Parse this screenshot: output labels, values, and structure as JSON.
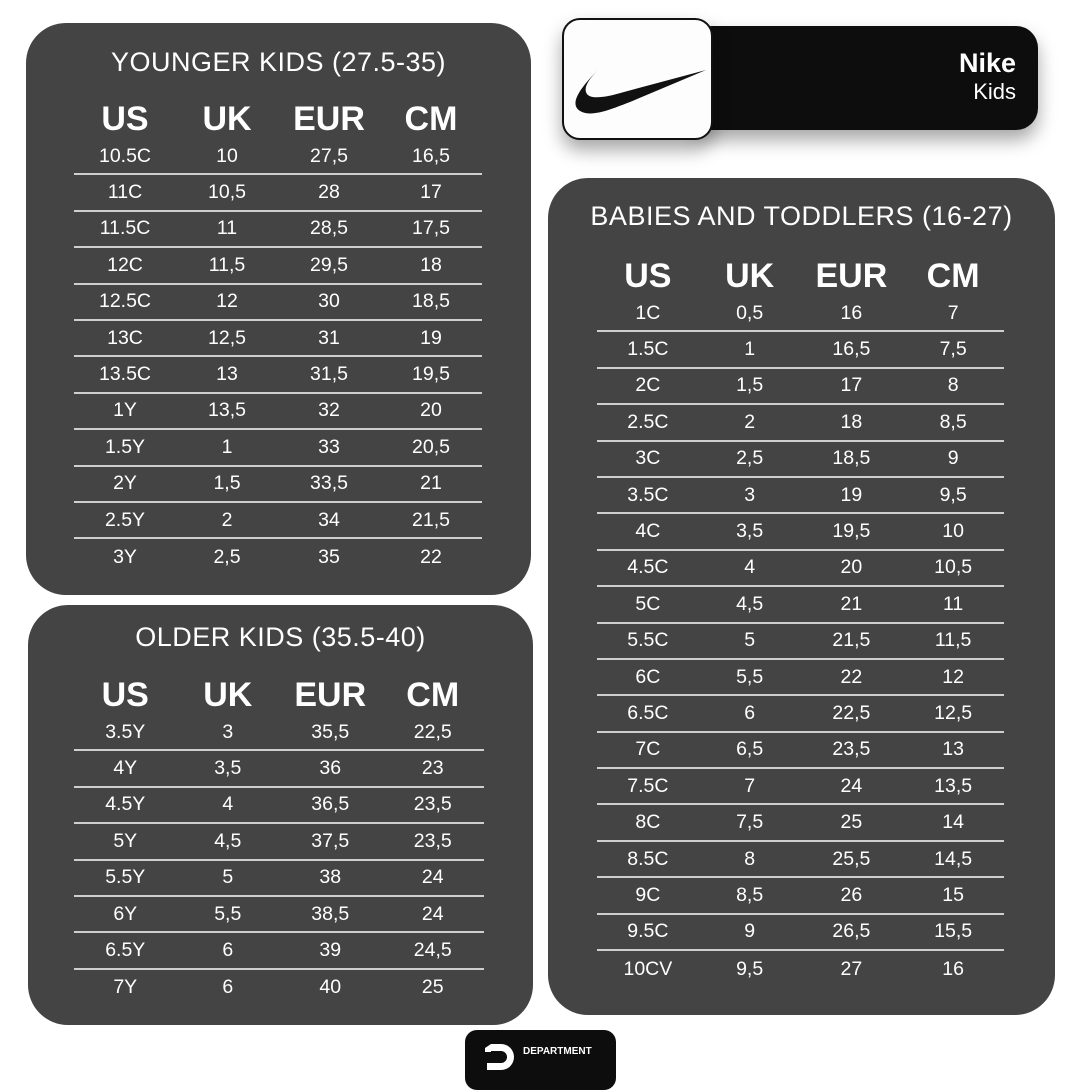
{
  "brand": {
    "name": "Nike",
    "subtitle": "Kids",
    "logo": "nike-swoosh",
    "footer_logo": "DEPARTMENT"
  },
  "colors": {
    "panel": "#444444",
    "bar": "#0d0d0d",
    "text": "#ffffff"
  },
  "columns": [
    "US",
    "UK",
    "EUR",
    "CM"
  ],
  "tables": {
    "younger": {
      "title": "YOUNGER KIDS (27.5-35)",
      "rows": [
        [
          "10.5C",
          "10",
          "27,5",
          "16,5"
        ],
        [
          "11C",
          "10,5",
          "28",
          "17"
        ],
        [
          "11.5C",
          "11",
          "28,5",
          "17,5"
        ],
        [
          "12C",
          "11,5",
          "29,5",
          "18"
        ],
        [
          "12.5C",
          "12",
          "30",
          "18,5"
        ],
        [
          "13C",
          "12,5",
          "31",
          "19"
        ],
        [
          "13.5C",
          "13",
          "31,5",
          "19,5"
        ],
        [
          "1Y",
          "13,5",
          "32",
          "20"
        ],
        [
          "1.5Y",
          "1",
          "33",
          "20,5"
        ],
        [
          "2Y",
          "1,5",
          "33,5",
          "21"
        ],
        [
          "2.5Y",
          "2",
          "34",
          "21,5"
        ],
        [
          "3Y",
          "2,5",
          "35",
          "22"
        ]
      ]
    },
    "older": {
      "title": "OLDER KIDS (35.5-40)",
      "rows": [
        [
          "3.5Y",
          "3",
          "35,5",
          "22,5"
        ],
        [
          "4Y",
          "3,5",
          "36",
          "23"
        ],
        [
          "4.5Y",
          "4",
          "36,5",
          "23,5"
        ],
        [
          "5Y",
          "4,5",
          "37,5",
          "23,5"
        ],
        [
          "5.5Y",
          "5",
          "38",
          "24"
        ],
        [
          "6Y",
          "5,5",
          "38,5",
          "24"
        ],
        [
          "6.5Y",
          "6",
          "39",
          "24,5"
        ],
        [
          "7Y",
          "6",
          "40",
          "25"
        ]
      ]
    },
    "babies": {
      "title": "BABIES AND TODDLERS (16-27)",
      "rows": [
        [
          "1C",
          "0,5",
          "16",
          "7"
        ],
        [
          "1.5C",
          "1",
          "16,5",
          "7,5"
        ],
        [
          "2C",
          "1,5",
          "17",
          "8"
        ],
        [
          "2.5C",
          "2",
          "18",
          "8,5"
        ],
        [
          "3C",
          "2,5",
          "18,5",
          "9"
        ],
        [
          "3.5C",
          "3",
          "19",
          "9,5"
        ],
        [
          "4C",
          "3,5",
          "19,5",
          "10"
        ],
        [
          "4.5C",
          "4",
          "20",
          "10,5"
        ],
        [
          "5C",
          "4,5",
          "21",
          "11"
        ],
        [
          "5.5C",
          "5",
          "21,5",
          "11,5"
        ],
        [
          "6C",
          "5,5",
          "22",
          "12"
        ],
        [
          "6.5C",
          "6",
          "22,5",
          "12,5"
        ],
        [
          "7C",
          "6,5",
          "23,5",
          "13"
        ],
        [
          "7.5C",
          "7",
          "24",
          "13,5"
        ],
        [
          "8C",
          "7,5",
          "25",
          "14"
        ],
        [
          "8.5C",
          "8",
          "25,5",
          "14,5"
        ],
        [
          "9C",
          "8,5",
          "26",
          "15"
        ],
        [
          "9.5C",
          "9",
          "26,5",
          "15,5"
        ],
        [
          "10CV",
          "9,5",
          "27",
          "16"
        ]
      ]
    }
  }
}
